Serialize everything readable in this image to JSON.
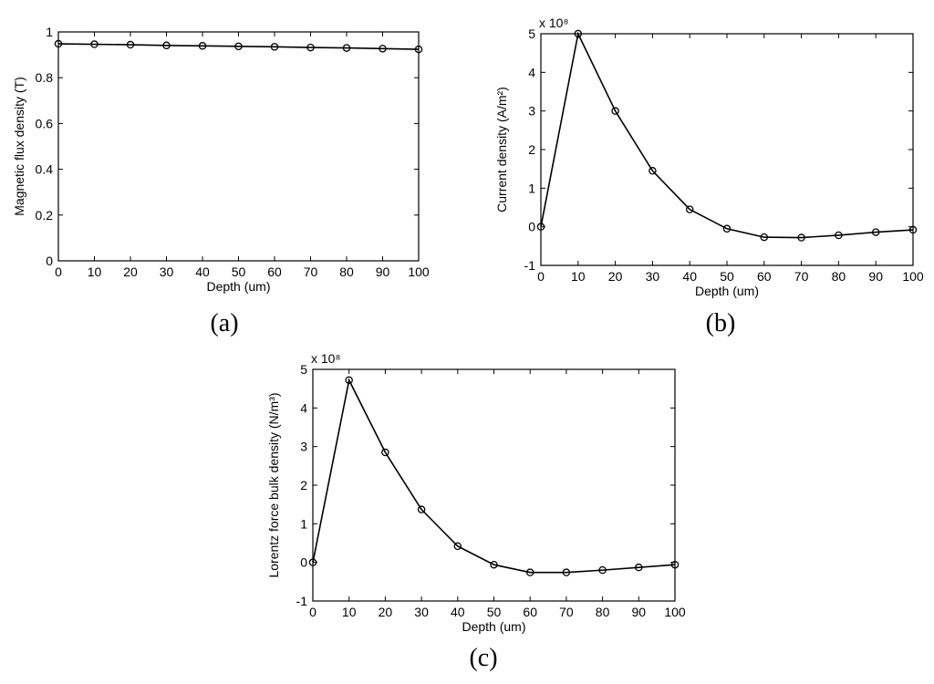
{
  "chart_data": [
    {
      "id": "a",
      "type": "line",
      "caption": "(a)",
      "xlabel": "Depth (um)",
      "ylabel": "Magnetic flux density  (T)",
      "exponent_label": "",
      "xlim": [
        0,
        100
      ],
      "ylim": [
        0,
        1
      ],
      "xticks": [
        0,
        10,
        20,
        30,
        40,
        50,
        60,
        70,
        80,
        90,
        100
      ],
      "yticks": [
        0,
        0.2,
        0.4,
        0.6,
        0.8,
        1
      ],
      "ytick_labels": [
        "0",
        "0.2",
        "0.4",
        "0.6",
        "0.8",
        "1"
      ],
      "grid": false,
      "marker": "circle",
      "x": [
        0,
        10,
        20,
        30,
        40,
        50,
        60,
        70,
        80,
        90,
        100
      ],
      "y": [
        0.948,
        0.946,
        0.944,
        0.941,
        0.939,
        0.937,
        0.935,
        0.932,
        0.93,
        0.927,
        0.924
      ]
    },
    {
      "id": "b",
      "type": "line",
      "caption": "(b)",
      "xlabel": "Depth (um)",
      "ylabel": "Current density (A/m²)",
      "exponent_label": "x 10⁸",
      "xlim": [
        0,
        100
      ],
      "ylim": [
        -1,
        5
      ],
      "xticks": [
        0,
        10,
        20,
        30,
        40,
        50,
        60,
        70,
        80,
        90,
        100
      ],
      "yticks": [
        -1,
        0,
        1,
        2,
        3,
        4,
        5
      ],
      "ytick_labels": [
        "-1",
        "0",
        "1",
        "2",
        "3",
        "4",
        "5"
      ],
      "grid": false,
      "marker": "circle",
      "x": [
        0,
        10,
        20,
        30,
        40,
        50,
        60,
        70,
        80,
        90,
        100
      ],
      "y": [
        0,
        5.0,
        3.0,
        1.45,
        0.45,
        -0.05,
        -0.27,
        -0.28,
        -0.22,
        -0.14,
        -0.08
      ]
    },
    {
      "id": "c",
      "type": "line",
      "caption": "(c)",
      "xlabel": "Depth (um)",
      "ylabel": "Lorentz force bulk density (N/m³)",
      "exponent_label": "x 10⁸",
      "xlim": [
        0,
        100
      ],
      "ylim": [
        -1,
        5
      ],
      "xticks": [
        0,
        10,
        20,
        30,
        40,
        50,
        60,
        70,
        80,
        90,
        100
      ],
      "yticks": [
        -1,
        0,
        1,
        2,
        3,
        4,
        5
      ],
      "ytick_labels": [
        "-1",
        "0",
        "1",
        "2",
        "3",
        "4",
        "5"
      ],
      "grid": false,
      "marker": "circle",
      "x": [
        0,
        10,
        20,
        30,
        40,
        50,
        60,
        70,
        80,
        90,
        100
      ],
      "y": [
        0,
        4.72,
        2.85,
        1.37,
        0.42,
        -0.06,
        -0.26,
        -0.26,
        -0.2,
        -0.13,
        -0.06
      ]
    }
  ]
}
